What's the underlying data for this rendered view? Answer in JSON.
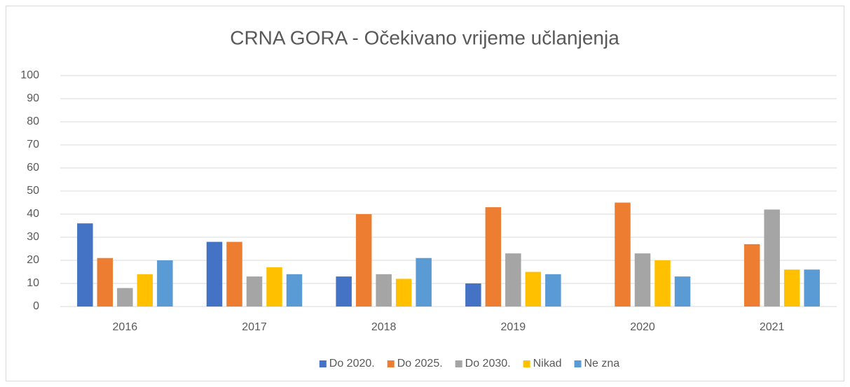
{
  "chart_data": {
    "type": "bar",
    "title": "CRNA GORA - Očekivano vrijeme učlanjenja",
    "categories": [
      "2016",
      "2017",
      "2018",
      "2019",
      "2020",
      "2021"
    ],
    "series": [
      {
        "name": "Do 2020.",
        "color": "#4472c4",
        "values": [
          36,
          28,
          13,
          10,
          null,
          null
        ]
      },
      {
        "name": "Do 2025.",
        "color": "#ed7d31",
        "values": [
          21,
          28,
          40,
          43,
          45,
          27
        ]
      },
      {
        "name": "Do 2030.",
        "color": "#a5a5a5",
        "values": [
          8,
          13,
          14,
          23,
          23,
          42
        ]
      },
      {
        "name": "Nikad",
        "color": "#ffc000",
        "values": [
          14,
          17,
          12,
          15,
          20,
          16
        ]
      },
      {
        "name": "Ne zna",
        "color": "#5b9bd5",
        "values": [
          20,
          14,
          21,
          14,
          13,
          16
        ]
      }
    ],
    "ylim": [
      0,
      100
    ],
    "yticks": [
      0,
      10,
      20,
      30,
      40,
      50,
      60,
      70,
      80,
      90,
      100
    ],
    "grid": true,
    "legend": "bottom"
  }
}
